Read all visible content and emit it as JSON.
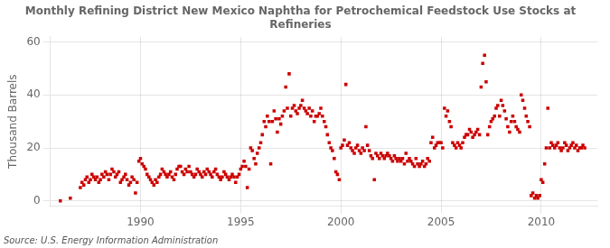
{
  "chart_data": {
    "type": "scatter",
    "title": "Monthly Refining District New Mexico Naphtha for Petrochemical Feedstock Use Stocks at\nRefineries",
    "y_label": "Thousand Barrels",
    "annotations": [
      "Source: U.S. Energy Information Administration"
    ],
    "color": "#cc0000",
    "marker": "square",
    "grid": true,
    "xlim": [
      1985.5,
      2012.8
    ],
    "ylim": [
      -2,
      62
    ],
    "xticks": [
      1990,
      1995,
      2000,
      2005,
      2010
    ],
    "yticks": [
      0,
      20,
      40,
      60
    ],
    "x": [
      1986.0,
      1986.5,
      1987.0,
      1987.08,
      1987.17,
      1987.25,
      1987.33,
      1987.42,
      1987.5,
      1987.58,
      1987.67,
      1987.75,
      1987.83,
      1987.92,
      1988.0,
      1988.08,
      1988.17,
      1988.25,
      1988.33,
      1988.42,
      1988.5,
      1988.58,
      1988.67,
      1988.75,
      1988.83,
      1988.92,
      1989.0,
      1989.08,
      1989.17,
      1989.25,
      1989.33,
      1989.42,
      1989.5,
      1989.58,
      1989.67,
      1989.75,
      1989.83,
      1989.92,
      1990.0,
      1990.08,
      1990.17,
      1990.25,
      1990.33,
      1990.42,
      1990.5,
      1990.58,
      1990.67,
      1990.75,
      1990.83,
      1990.92,
      1991.0,
      1991.08,
      1991.17,
      1991.25,
      1991.33,
      1991.42,
      1991.5,
      1991.58,
      1991.67,
      1991.75,
      1991.83,
      1991.92,
      1992.0,
      1992.08,
      1992.17,
      1992.25,
      1992.33,
      1992.42,
      1992.5,
      1992.58,
      1992.67,
      1992.75,
      1992.83,
      1992.92,
      1993.0,
      1993.08,
      1993.17,
      1993.25,
      1993.33,
      1993.42,
      1993.5,
      1993.58,
      1993.67,
      1993.75,
      1993.83,
      1993.92,
      1994.0,
      1994.08,
      1994.17,
      1994.25,
      1994.33,
      1994.42,
      1994.5,
      1994.58,
      1994.67,
      1994.75,
      1994.83,
      1994.92,
      1995.0,
      1995.08,
      1995.17,
      1995.25,
      1995.33,
      1995.42,
      1995.5,
      1995.58,
      1995.67,
      1995.75,
      1995.83,
      1995.92,
      1996.0,
      1996.08,
      1996.17,
      1996.25,
      1996.33,
      1996.42,
      1996.5,
      1996.58,
      1996.67,
      1996.75,
      1996.83,
      1996.92,
      1997.0,
      1997.08,
      1997.17,
      1997.25,
      1997.33,
      1997.42,
      1997.5,
      1997.58,
      1997.67,
      1997.75,
      1997.83,
      1997.92,
      1998.0,
      1998.08,
      1998.17,
      1998.25,
      1998.33,
      1998.42,
      1998.5,
      1998.58,
      1998.67,
      1998.75,
      1998.83,
      1998.92,
      1999.0,
      1999.08,
      1999.17,
      1999.25,
      1999.33,
      1999.42,
      1999.5,
      1999.58,
      1999.67,
      1999.75,
      1999.83,
      1999.92,
      2000.0,
      2000.08,
      2000.17,
      2000.25,
      2000.33,
      2000.42,
      2000.5,
      2000.58,
      2000.67,
      2000.75,
      2000.83,
      2000.92,
      2001.0,
      2001.08,
      2001.17,
      2001.25,
      2001.33,
      2001.42,
      2001.5,
      2001.58,
      2001.67,
      2001.75,
      2001.83,
      2001.92,
      2002.0,
      2002.08,
      2002.17,
      2002.25,
      2002.33,
      2002.42,
      2002.5,
      2002.58,
      2002.67,
      2002.75,
      2002.83,
      2002.92,
      2003.0,
      2003.08,
      2003.17,
      2003.25,
      2003.33,
      2003.42,
      2003.5,
      2003.58,
      2003.67,
      2003.75,
      2003.83,
      2003.92,
      2004.0,
      2004.08,
      2004.17,
      2004.25,
      2004.33,
      2004.42,
      2004.5,
      2004.58,
      2004.67,
      2004.75,
      2004.83,
      2004.92,
      2005.0,
      2005.08,
      2005.17,
      2005.25,
      2005.33,
      2005.42,
      2005.5,
      2005.58,
      2005.67,
      2005.75,
      2005.83,
      2005.92,
      2006.0,
      2006.08,
      2006.17,
      2006.25,
      2006.33,
      2006.42,
      2006.5,
      2006.58,
      2006.67,
      2006.75,
      2006.83,
      2006.92,
      2007.0,
      2007.08,
      2007.17,
      2007.25,
      2007.33,
      2007.42,
      2007.5,
      2007.58,
      2007.67,
      2007.75,
      2007.83,
      2007.92,
      2008.0,
      2008.08,
      2008.17,
      2008.25,
      2008.33,
      2008.42,
      2008.5,
      2008.58,
      2008.67,
      2008.75,
      2008.83,
      2008.92,
      2009.0,
      2009.08,
      2009.17,
      2009.25,
      2009.33,
      2009.42,
      2009.5,
      2009.58,
      2009.67,
      2009.75,
      2009.83,
      2009.92,
      2010.0,
      2010.08,
      2010.17,
      2010.25,
      2010.33,
      2010.42,
      2010.5,
      2010.58,
      2010.67,
      2010.75,
      2010.83,
      2010.92,
      2011.0,
      2011.08,
      2011.17,
      2011.25,
      2011.33,
      2011.42,
      2011.5,
      2011.58,
      2011.67,
      2011.75,
      2011.83,
      2011.92,
      2012.0,
      2012.08,
      2012.17
    ],
    "values": [
      0,
      1,
      5,
      7,
      6,
      8,
      9,
      7,
      8,
      10,
      9,
      8,
      9,
      7,
      8,
      10,
      9,
      11,
      10,
      8,
      10,
      12,
      11,
      9,
      10,
      11,
      7,
      8,
      9,
      10,
      8,
      6,
      7,
      9,
      8,
      3,
      7,
      15,
      16,
      14,
      13,
      12,
      10,
      9,
      8,
      7,
      6,
      8,
      7,
      9,
      10,
      12,
      11,
      10,
      9,
      10,
      11,
      9,
      8,
      10,
      12,
      13,
      13,
      11,
      10,
      12,
      11,
      13,
      11,
      10,
      9,
      10,
      12,
      11,
      10,
      9,
      11,
      10,
      12,
      11,
      10,
      9,
      11,
      12,
      10,
      9,
      8,
      9,
      11,
      10,
      9,
      8,
      9,
      10,
      9,
      7,
      9,
      10,
      12,
      13,
      15,
      13,
      5,
      12,
      20,
      19,
      16,
      14,
      18,
      20,
      22,
      25,
      30,
      28,
      32,
      30,
      14,
      30,
      34,
      31,
      26,
      31,
      29,
      32,
      34,
      43,
      35,
      48,
      32,
      35,
      36,
      34,
      33,
      35,
      36,
      38,
      35,
      34,
      33,
      35,
      32,
      34,
      30,
      32,
      32,
      33,
      35,
      32,
      30,
      28,
      25,
      22,
      20,
      19,
      16,
      11,
      10,
      8,
      20,
      21,
      23,
      44,
      21,
      22,
      20,
      19,
      18,
      20,
      21,
      19,
      18,
      20,
      19,
      28,
      21,
      19,
      17,
      16,
      8,
      18,
      17,
      16,
      18,
      17,
      16,
      17,
      18,
      17,
      16,
      15,
      17,
      16,
      15,
      16,
      15,
      16,
      14,
      18,
      15,
      16,
      15,
      14,
      13,
      16,
      14,
      13,
      14,
      15,
      13,
      14,
      16,
      15,
      22,
      24,
      20,
      21,
      22,
      22,
      22,
      20,
      35,
      32,
      34,
      30,
      28,
      22,
      21,
      20,
      22,
      21,
      20,
      22,
      24,
      25,
      25,
      27,
      26,
      24,
      25,
      26,
      27,
      25,
      43,
      52,
      55,
      45,
      25,
      28,
      30,
      31,
      32,
      35,
      36,
      32,
      38,
      36,
      34,
      31,
      28,
      26,
      30,
      32,
      30,
      28,
      27,
      26,
      40,
      38,
      35,
      32,
      30,
      28,
      2,
      3,
      1,
      2,
      1,
      2,
      8,
      7,
      14,
      20,
      35,
      20,
      22,
      21,
      20,
      21,
      22,
      20,
      19,
      20,
      22,
      21,
      19,
      20,
      21,
      22,
      20,
      21,
      19,
      20,
      20,
      21,
      20
    ]
  }
}
